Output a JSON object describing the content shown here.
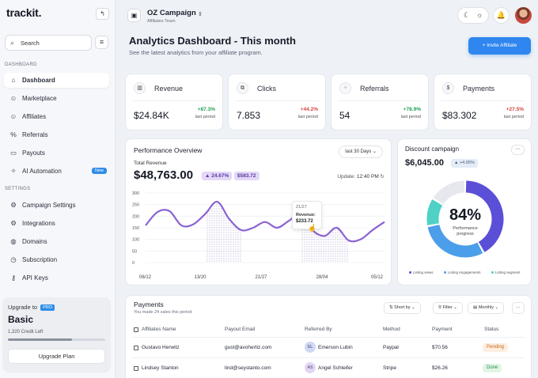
{
  "sidebar": {
    "logo": "trackit.",
    "search_placeholder": "Search",
    "sections": {
      "dashboard": "DASHBOARD",
      "settings": "SETTINGS"
    },
    "items": [
      {
        "label": "Dashboard",
        "icon": "home-icon"
      },
      {
        "label": "Marketplace",
        "icon": "users-icon"
      },
      {
        "label": "Affiliates",
        "icon": "users-icon"
      },
      {
        "label": "Referrals",
        "icon": "percent-icon"
      },
      {
        "label": "Payouts",
        "icon": "wallet-icon"
      },
      {
        "label": "AI Automation",
        "icon": "sparkle-icon",
        "badge": "New"
      },
      {
        "label": "Campaign Settings",
        "icon": "gear-icon"
      },
      {
        "label": "Integrations",
        "icon": "gear-icon"
      },
      {
        "label": "Domains",
        "icon": "globe-icon"
      },
      {
        "label": "Subscription",
        "icon": "check-circle-icon"
      },
      {
        "label": "API Keys",
        "icon": "key-icon"
      }
    ],
    "upgrade": {
      "label": "Upgrade to",
      "pro": "PRO",
      "plan": "Basic",
      "credit": "1,320 Credit Left",
      "credit_fraction": 0.66,
      "button": "Upgrade Plan"
    }
  },
  "header": {
    "campaign_name": "OZ Campaign",
    "team": "Affiliates Team"
  },
  "main": {
    "title": "Analytics Dashboard - This month",
    "subtitle": "See the latest analytics from your affiliate program.",
    "invite": "+ Invite Affiliate"
  },
  "stats": [
    {
      "label": "Revenue",
      "value": "$24.84K",
      "change": "+87.3%",
      "period": "last period",
      "color": "#1f9d55"
    },
    {
      "label": "Clicks",
      "value": "7.853",
      "change": "+44.2%",
      "period": "last period",
      "color": "#d6453d"
    },
    {
      "label": "Referrals",
      "value": "54",
      "change": "+78.9%",
      "period": "last period",
      "color": "#1f9d55"
    },
    {
      "label": "Payments",
      "value": "$83.302",
      "change": "+27.5%",
      "period": "last period",
      "color": "#d6453d"
    }
  ],
  "performance": {
    "title": "Performance Overview",
    "range": "last 30 Days ⌄",
    "total_label": "Total Revenue",
    "total": "$48,763.00",
    "pct": "▲ 24.67%",
    "delta": "$583.72",
    "update_label": "Update:",
    "update_time": "12:40 PM",
    "tooltip": {
      "date": "21/27",
      "label": "Revenue:",
      "value": "$233.72"
    }
  },
  "chart_data": {
    "type": "area",
    "title": "",
    "xlabel": "",
    "ylabel": "",
    "ylim": [
      0,
      300
    ],
    "y_ticks": [
      "300",
      "250",
      "200",
      "150",
      "100",
      "50",
      "0"
    ],
    "x_ticks": [
      "06/12",
      "13/20",
      "21/27",
      "28/04",
      "05/12"
    ],
    "x": [
      0,
      0.5,
      1,
      1.5,
      2,
      2.5,
      3,
      3.5,
      4,
      4.5,
      5,
      5.5,
      6,
      6.5,
      7,
      7.5,
      8,
      8.5,
      9,
      9.5,
      10
    ],
    "values": [
      160,
      218,
      222,
      160,
      165,
      210,
      262,
      188,
      140,
      150,
      175,
      150,
      180,
      210,
      138,
      115,
      150,
      95,
      100,
      140,
      175
    ],
    "x_max": 10,
    "shaded": [
      [
        2.5,
        4
      ],
      [
        6.5,
        8.5
      ]
    ]
  },
  "discount": {
    "title": "Discount campaign",
    "value": "$6,045.00",
    "change": "▲ +4.95%",
    "percent": "84%",
    "percent_label": "Performance progress",
    "segments": [
      {
        "name": "Listing views",
        "value": 42,
        "color": "#5b4fd8"
      },
      {
        "name": "Listing engagements",
        "value": 30,
        "color": "#4b9eea"
      },
      {
        "name": "Listing segment",
        "value": 12,
        "color": "#4fd1c5"
      },
      {
        "name": "",
        "value": 16,
        "color": "#e6e8ee"
      }
    ]
  },
  "payments": {
    "title": "Payments",
    "subtitle": "You made 24 sales this period",
    "sort": "⇅ Short by ⌄",
    "filter": "⚲ Filter ⌄",
    "period": "▤ Monthly ⌄",
    "columns": [
      "Affiliates Name",
      "Payout Email",
      "Referred By",
      "Method",
      "Payment",
      "Status"
    ],
    "rows": [
      {
        "name": "Gustavo Herwitz",
        "email": "gust@avohertiz.com",
        "ref_initials": "EL",
        "ref_color": "#cfd8f4",
        "referrer": "Emerson Lubin",
        "method": "Paypal",
        "payment": "$70.56",
        "status": "Pending",
        "status_bg": "#fdeee0",
        "status_color": "#c96a1a"
      },
      {
        "name": "Lindsey Stanton",
        "email": "lind@seystanto.com",
        "ref_initials": "AS",
        "ref_color": "#e2d6f4",
        "referrer": "Angel Schleifer",
        "method": "Stripe",
        "payment": "$26.26",
        "status": "Done",
        "status_bg": "#e1f5e6",
        "status_color": "#2a8c45"
      }
    ]
  }
}
